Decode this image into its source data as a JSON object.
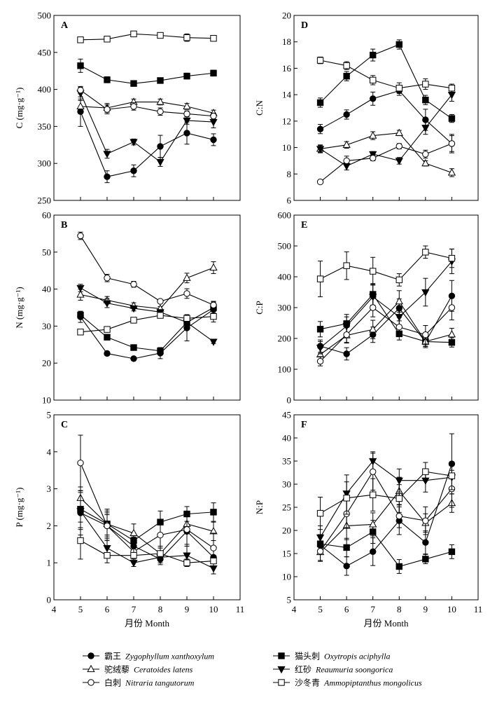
{
  "figure": {
    "xlabel": "月份 Month",
    "xticks": [
      4,
      5,
      6,
      7,
      8,
      9,
      10,
      11
    ]
  },
  "series_meta": [
    {
      "key": "Zx",
      "cn": "霸王",
      "latin": "Zygophyllum xanthoxylum",
      "marker": "filled-circle"
    },
    {
      "key": "Oa",
      "cn": "猫头刺",
      "latin": "Oxytropis aciphylla",
      "marker": "filled-square"
    },
    {
      "key": "Cl",
      "cn": "驼绒藜",
      "latin": "Ceratoides latens",
      "marker": "open-triangle-up"
    },
    {
      "key": "Rs",
      "cn": "红砂",
      "latin": "Reaumuria soongorica",
      "marker": "filled-triangle-down"
    },
    {
      "key": "Nt",
      "cn": "白刺",
      "latin": "Nitraria tangutorum",
      "marker": "open-circle"
    },
    {
      "key": "Am",
      "cn": "沙冬青",
      "latin": "Ammopiptanthus mongolicus",
      "marker": "open-square"
    }
  ],
  "chart_data": [
    {
      "type": "line",
      "panel": "A",
      "ylabel": "C (mg·g⁻¹)",
      "x": [
        5,
        6,
        7,
        8,
        9,
        10
      ],
      "xlim": [
        4,
        11
      ],
      "ylim": [
        250,
        500
      ],
      "yticks": [
        250,
        300,
        350,
        400,
        450,
        500
      ],
      "series": [
        {
          "name": "Zygophyllum xanthoxylum",
          "values": [
            370,
            282,
            290,
            323,
            341,
            332
          ],
          "err": [
            20,
            8,
            8,
            15,
            15,
            8
          ]
        },
        {
          "name": "Oxytropis aciphylla",
          "values": [
            432,
            413,
            408,
            412,
            418,
            422
          ],
          "err": [
            9,
            4,
            3,
            3,
            4,
            4
          ]
        },
        {
          "name": "Ceratoides latens",
          "values": [
            377,
            375,
            383,
            383,
            377,
            368
          ],
          "err": [
            8,
            6,
            4,
            4,
            4,
            4
          ]
        },
        {
          "name": "Reaumuria soongorica",
          "values": [
            395,
            313,
            329,
            302,
            358,
            356
          ],
          "err": [
            8,
            6,
            4,
            6,
            5,
            8
          ]
        },
        {
          "name": "Nitraria tangutorum",
          "values": [
            399,
            373,
            377,
            370,
            367,
            364
          ],
          "err": [
            5,
            6,
            5,
            5,
            4,
            4
          ]
        },
        {
          "name": "Ammopiptanthus mongolicus",
          "values": [
            467,
            468,
            475,
            473,
            470,
            469
          ],
          "err": [
            3,
            3,
            3,
            3,
            5,
            3
          ]
        }
      ]
    },
    {
      "type": "line",
      "panel": "D",
      "ylabel": "C:N",
      "x": [
        5,
        6,
        7,
        8,
        9,
        10
      ],
      "xlim": [
        4,
        11
      ],
      "ylim": [
        6,
        20
      ],
      "yticks": [
        6,
        8,
        10,
        12,
        14,
        16,
        18,
        20
      ],
      "series": [
        {
          "name": "Zygophyllum xanthoxylum",
          "values": [
            11.4,
            12.5,
            13.7,
            14.3,
            12.1,
            10.3
          ],
          "err": [
            0.35,
            0.35,
            0.5,
            0.35,
            0.8,
            0.6
          ]
        },
        {
          "name": "Oxytropis aciphylla",
          "values": [
            13.4,
            15.4,
            17.0,
            17.8,
            13.6,
            12.2
          ],
          "err": [
            0.35,
            0.35,
            0.45,
            0.35,
            0.35,
            0.3
          ]
        },
        {
          "name": "Ceratoides latens",
          "values": [
            9.9,
            10.2,
            10.9,
            11.1,
            8.8,
            8.1
          ],
          "err": [
            0.3,
            0.25,
            0.3,
            0.2,
            0.2,
            0.3
          ]
        },
        {
          "name": "Reaumuria soongorica",
          "values": [
            9.9,
            8.6,
            9.5,
            9.0,
            11.5,
            14.0
          ],
          "err": [
            0.25,
            0.3,
            0.2,
            0.25,
            0.5,
            0.5
          ]
        },
        {
          "name": "Nitraria tangutorum",
          "values": [
            7.4,
            9.0,
            9.2,
            10.1,
            9.5,
            10.3
          ],
          "err": [
            0.1,
            0.35,
            0.2,
            0.2,
            0.3,
            0.7
          ]
        },
        {
          "name": "Ammopiptanthus mongolicus",
          "values": [
            16.6,
            16.2,
            15.1,
            14.5,
            14.8,
            14.5
          ],
          "err": [
            0.25,
            0.3,
            0.35,
            0.4,
            0.4,
            0.3
          ]
        }
      ]
    },
    {
      "type": "line",
      "panel": "B",
      "ylabel": "N (mg·g⁻¹)",
      "x": [
        5,
        6,
        7,
        8,
        9,
        10
      ],
      "xlim": [
        4,
        11
      ],
      "ylim": [
        10,
        60
      ],
      "yticks": [
        10,
        20,
        30,
        40,
        50,
        60
      ],
      "series": [
        {
          "name": "Zygophyllum xanthoxylum",
          "values": [
            32.5,
            22.6,
            21.2,
            22.7,
            29.5,
            34.5
          ],
          "err": [
            1.5,
            0.5,
            0.4,
            1.5,
            3.5,
            1.0
          ]
        },
        {
          "name": "Oxytropis aciphylla",
          "values": [
            33,
            27,
            24.2,
            23.3,
            31,
            35
          ],
          "err": [
            1.0,
            0.5,
            0.4,
            0.5,
            1.0,
            1.5
          ]
        },
        {
          "name": "Ceratoides latens",
          "values": [
            38.5,
            37,
            35.5,
            34.7,
            43,
            45.8
          ],
          "err": [
            1.5,
            1.0,
            0.8,
            0.6,
            1.3,
            1.6
          ]
        },
        {
          "name": "Reaumuria soongorica",
          "values": [
            40.3,
            36.2,
            34.8,
            33.8,
            31,
            25.8
          ],
          "err": [
            1.0,
            1.2,
            0.7,
            0.6,
            1.0,
            0.5
          ]
        },
        {
          "name": "Nitraria tangutorum",
          "values": [
            54.4,
            43,
            41.3,
            36.7,
            38.8,
            35.7
          ],
          "err": [
            1.0,
            1.0,
            0.8,
            0.5,
            1.3,
            1.0
          ]
        },
        {
          "name": "Ammopiptanthus mongolicus",
          "values": [
            28.4,
            29.1,
            31.6,
            32.9,
            32.1,
            32.6
          ],
          "err": [
            0.5,
            0.5,
            0.5,
            0.5,
            1.0,
            1.5
          ]
        }
      ]
    },
    {
      "type": "line",
      "panel": "E",
      "ylabel": "C:P",
      "x": [
        5,
        6,
        7,
        8,
        9,
        10
      ],
      "xlim": [
        4,
        11
      ],
      "ylim": [
        0,
        600
      ],
      "yticks": [
        0,
        100,
        200,
        300,
        400,
        500,
        600
      ],
      "series": [
        {
          "name": "Zygophyllum xanthoxylum",
          "values": [
            175,
            150,
            212,
            298,
            189,
            338
          ],
          "err": [
            20,
            20,
            25,
            30,
            15,
            50
          ]
        },
        {
          "name": "Oxytropis aciphylla",
          "values": [
            230,
            248,
            343,
            215,
            190,
            187
          ],
          "err": [
            25,
            30,
            35,
            20,
            15,
            15
          ]
        },
        {
          "name": "Ceratoides latens",
          "values": [
            148,
            210,
            229,
            320,
            190,
            213
          ],
          "err": [
            20,
            25,
            30,
            35,
            20,
            20
          ]
        },
        {
          "name": "Reaumuria soongorica",
          "values": [
            170,
            240,
            335,
            270,
            350,
            450
          ],
          "err": [
            20,
            30,
            40,
            30,
            45,
            40
          ]
        },
        {
          "name": "Nitraria tangutorum",
          "values": [
            126,
            212,
            300,
            237,
            212,
            300
          ],
          "err": [
            15,
            25,
            30,
            20,
            30,
            40
          ]
        },
        {
          "name": "Ammopiptanthus mongolicus",
          "values": [
            393,
            436,
            418,
            390,
            480,
            460
          ],
          "err": [
            58,
            45,
            45,
            20,
            20,
            30
          ]
        }
      ]
    },
    {
      "type": "line",
      "panel": "C",
      "ylabel": "P (mg·g⁻¹)",
      "x": [
        5,
        6,
        7,
        8,
        9,
        10
      ],
      "xlim": [
        4,
        11
      ],
      "ylim": [
        0,
        5
      ],
      "yticks": [
        0,
        1,
        2,
        3,
        4,
        5
      ],
      "series": [
        {
          "name": "Zygophyllum xanthoxylum",
          "values": [
            2.35,
            2.0,
            1.45,
            1.1,
            1.85,
            1.15
          ],
          "err": [
            0.6,
            0.3,
            0.25,
            0.15,
            0.4,
            0.3
          ]
        },
        {
          "name": "Oxytropis aciphylla",
          "values": [
            2.45,
            2.05,
            1.6,
            2.1,
            2.32,
            2.37
          ],
          "err": [
            0.5,
            0.4,
            0.2,
            0.3,
            0.2,
            0.25
          ]
        },
        {
          "name": "Ceratoides latens",
          "values": [
            2.75,
            2.05,
            1.8,
            1.25,
            2.05,
            1.85
          ],
          "err": [
            0.3,
            0.3,
            0.25,
            0.2,
            0.2,
            0.25
          ]
        },
        {
          "name": "Reaumuria soongorica",
          "values": [
            2.4,
            1.4,
            1.0,
            1.15,
            1.2,
            0.85
          ],
          "err": [
            0.5,
            0.2,
            0.1,
            0.15,
            0.25,
            0.15
          ]
        },
        {
          "name": "Nitraria tangutorum",
          "values": [
            3.7,
            2.0,
            1.3,
            1.75,
            1.9,
            1.4
          ],
          "err": [
            0.75,
            0.4,
            0.3,
            0.35,
            0.4,
            0.4
          ]
        },
        {
          "name": "Ammopiptanthus mongolicus",
          "values": [
            1.6,
            1.2,
            1.2,
            1.25,
            1.0,
            1.05
          ],
          "err": [
            0.5,
            0.2,
            0.2,
            0.15,
            0.1,
            0.15
          ]
        }
      ]
    },
    {
      "type": "line",
      "panel": "F",
      "ylabel": "N:P",
      "x": [
        5,
        6,
        7,
        8,
        9,
        10
      ],
      "xlim": [
        4,
        11
      ],
      "ylim": [
        5,
        45
      ],
      "yticks": [
        5,
        10,
        15,
        20,
        25,
        30,
        35,
        40,
        45
      ],
      "series": [
        {
          "name": "Zygophyllum xanthoxylum",
          "values": [
            16.8,
            12.3,
            15.4,
            22.1,
            17.4,
            34.4
          ],
          "err": [
            2.0,
            2.0,
            3.0,
            3.0,
            2.5,
            6.5
          ]
        },
        {
          "name": "Oxytropis aciphylla",
          "values": [
            17.1,
            16.3,
            19.7,
            12.2,
            13.8,
            15.4
          ],
          "err": [
            2.0,
            2.0,
            2.5,
            1.5,
            1.0,
            1.5
          ]
        },
        {
          "name": "Ceratoides latens",
          "values": [
            15.3,
            21.0,
            21.3,
            28.5,
            21.6,
            25.9
          ],
          "err": [
            2.0,
            3.0,
            2.5,
            3.0,
            2.0,
            2.0
          ]
        },
        {
          "name": "Reaumuria soongorica",
          "values": [
            18.5,
            28.0,
            35.0,
            30.8,
            30.8,
            31.5
          ],
          "err": [
            2.5,
            4.0,
            2.0,
            2.5,
            2.5,
            3.0
          ]
        },
        {
          "name": "Nitraria tangutorum",
          "values": [
            15.5,
            23.6,
            32.7,
            23.1,
            22.1,
            29.0
          ],
          "err": [
            2.0,
            3.0,
            4.0,
            2.5,
            3.0,
            4.0
          ]
        },
        {
          "name": "Ammopiptanthus mongolicus",
          "values": [
            23.7,
            27.0,
            27.7,
            26.9,
            32.7,
            31.8
          ],
          "err": [
            3.5,
            3.5,
            3.5,
            3.0,
            2.0,
            3.0
          ]
        }
      ]
    }
  ]
}
